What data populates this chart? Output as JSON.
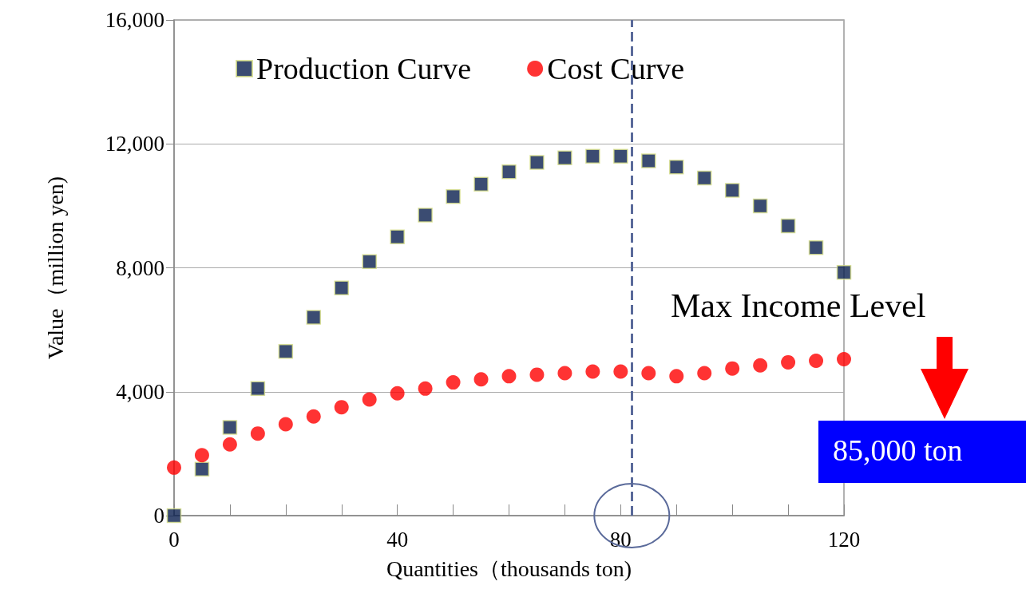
{
  "chart_data": {
    "type": "scatter",
    "xlabel": "Quantities（thousands ton)",
    "ylabel": "Value（million yen)",
    "x": [
      0,
      5,
      10,
      15,
      20,
      25,
      30,
      35,
      40,
      45,
      50,
      55,
      60,
      65,
      70,
      75,
      80,
      85,
      90,
      95,
      100,
      105,
      110,
      115,
      120
    ],
    "series": [
      {
        "name": "Production Curve",
        "color": "#0a1f4f",
        "marker": "square",
        "values": [
          0,
          1500,
          2850,
          4100,
          5300,
          6400,
          7350,
          8200,
          9000,
          9700,
          10300,
          10700,
          11100,
          11400,
          11550,
          11600,
          11600,
          11450,
          11250,
          10900,
          10500,
          10000,
          9350,
          8650,
          7850
        ]
      },
      {
        "name": "Cost Curve",
        "color": "#ff0000",
        "marker": "circle",
        "values": [
          1550,
          1950,
          2300,
          2650,
          2950,
          3200,
          3500,
          3750,
          3950,
          4100,
          4300,
          4400,
          4500,
          4550,
          4600,
          4650,
          4650,
          4600,
          4500,
          4600,
          4750,
          4850,
          4950,
          5000,
          5050
        ]
      }
    ],
    "xlim": [
      0,
      120
    ],
    "xticks": [
      0,
      {
        "value": 10,
        "label": null
      },
      {
        "value": 20,
        "label": null
      },
      {
        "value": 30,
        "label": null
      },
      40,
      {
        "value": 50,
        "label": null
      },
      {
        "value": 60,
        "label": null
      },
      {
        "value": 70,
        "label": null
      },
      80,
      {
        "value": 90,
        "label": null
      },
      {
        "value": 100,
        "label": null
      },
      {
        "value": 110,
        "label": null
      },
      120
    ],
    "ylim": [
      0,
      16000
    ],
    "yticks": [
      0,
      {
        "value": 4000,
        "label": "4,000"
      },
      {
        "value": 8000,
        "label": "8,000"
      },
      {
        "value": 12000,
        "label": "12,000"
      },
      {
        "value": 16000,
        "label": "16,000"
      }
    ],
    "grid": "y",
    "legend": "top",
    "ref_lines": [
      {
        "axis": "x",
        "value": 82,
        "color": "#5a6a9a",
        "line_style": "dashed"
      }
    ],
    "annotations": [
      "Max Income Level",
      "85,000 ton"
    ]
  }
}
